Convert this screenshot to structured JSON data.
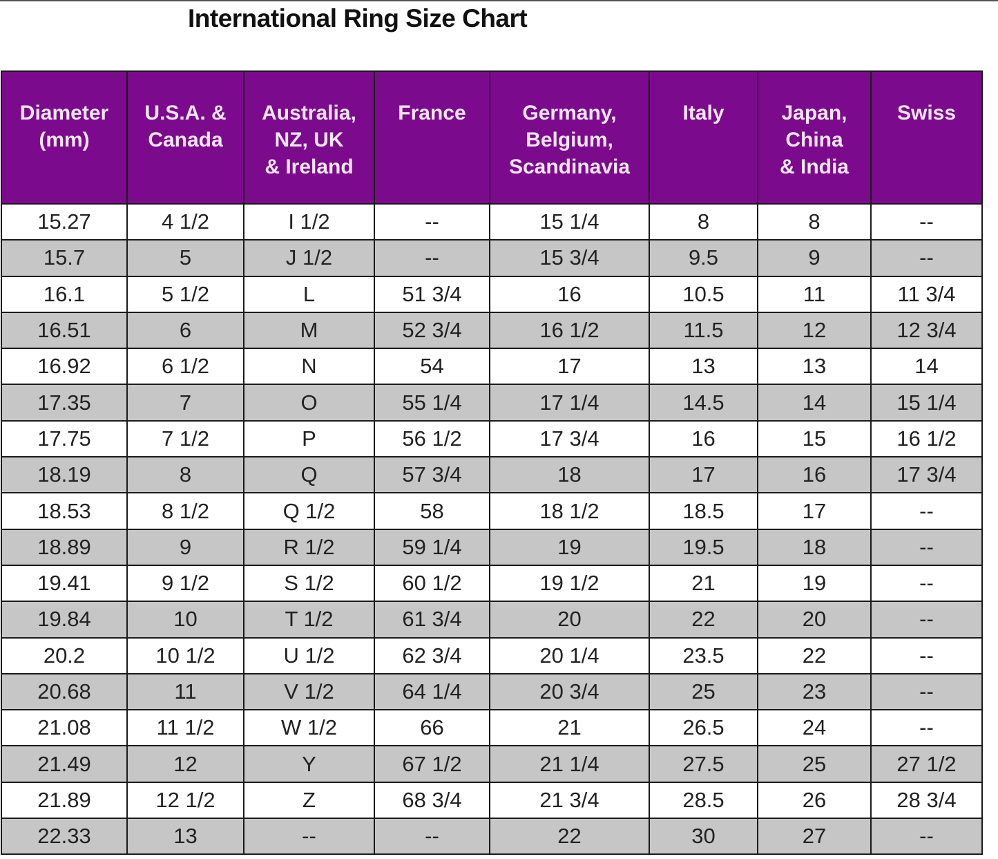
{
  "title": "International Ring Size Chart",
  "colors": {
    "header_bg": "#7b0a8c",
    "header_text": "#f4e6f6",
    "alt_row_bg": "#c6c6c6"
  },
  "table": {
    "headers": [
      [
        "Diameter",
        "(mm)"
      ],
      [
        "U.S.A. &",
        "Canada"
      ],
      [
        "Australia,",
        "NZ, UK",
        "& Ireland"
      ],
      [
        "France"
      ],
      [
        "Germany,",
        "Belgium,",
        "Scandinavia"
      ],
      [
        "Italy"
      ],
      [
        "Japan,",
        "China",
        "& India"
      ],
      [
        "Swiss"
      ]
    ],
    "rows": [
      [
        "15.27",
        "4 1/2",
        "I 1/2",
        "--",
        "15 1/4",
        "8",
        "8",
        "--"
      ],
      [
        "15.7",
        "5",
        "J 1/2",
        "--",
        "15 3/4",
        "9.5",
        "9",
        "--"
      ],
      [
        "16.1",
        "5 1/2",
        "L",
        "51 3/4",
        "16",
        "10.5",
        "11",
        "11 3/4"
      ],
      [
        "16.51",
        "6",
        "M",
        "52 3/4",
        "16 1/2",
        "11.5",
        "12",
        "12 3/4"
      ],
      [
        "16.92",
        "6 1/2",
        "N",
        "54",
        "17",
        "13",
        "13",
        "14"
      ],
      [
        "17.35",
        "7",
        "O",
        "55 1/4",
        "17 1/4",
        "14.5",
        "14",
        "15 1/4"
      ],
      [
        "17.75",
        "7 1/2",
        "P",
        "56 1/2",
        "17 3/4",
        "16",
        "15",
        "16 1/2"
      ],
      [
        "18.19",
        "8",
        "Q",
        "57 3/4",
        "18",
        "17",
        "16",
        "17 3/4"
      ],
      [
        "18.53",
        "8 1/2",
        "Q 1/2",
        "58",
        "18 1/2",
        "18.5",
        "17",
        "--"
      ],
      [
        "18.89",
        "9",
        "R 1/2",
        "59 1/4",
        "19",
        "19.5",
        "18",
        "--"
      ],
      [
        "19.41",
        "9 1/2",
        "S 1/2",
        "60 1/2",
        "19 1/2",
        "21",
        "19",
        "--"
      ],
      [
        "19.84",
        "10",
        "T 1/2",
        "61 3/4",
        "20",
        "22",
        "20",
        "--"
      ],
      [
        "20.2",
        "10 1/2",
        "U 1/2",
        "62 3/4",
        "20 1/4",
        "23.5",
        "22",
        "--"
      ],
      [
        "20.68",
        "11",
        "V 1/2",
        "64 1/4",
        "20 3/4",
        "25",
        "23",
        "--"
      ],
      [
        "21.08",
        "11 1/2",
        "W 1/2",
        "66",
        "21",
        "26.5",
        "24",
        "--"
      ],
      [
        "21.49",
        "12",
        "Y",
        "67 1/2",
        "21 1/4",
        "27.5",
        "25",
        "27 1/2"
      ],
      [
        "21.89",
        "12 1/2",
        "Z",
        "68 3/4",
        "21 3/4",
        "28.5",
        "26",
        "28 3/4"
      ],
      [
        "22.33",
        "13",
        "--",
        "--",
        "22",
        "30",
        "27",
        "--"
      ]
    ]
  }
}
